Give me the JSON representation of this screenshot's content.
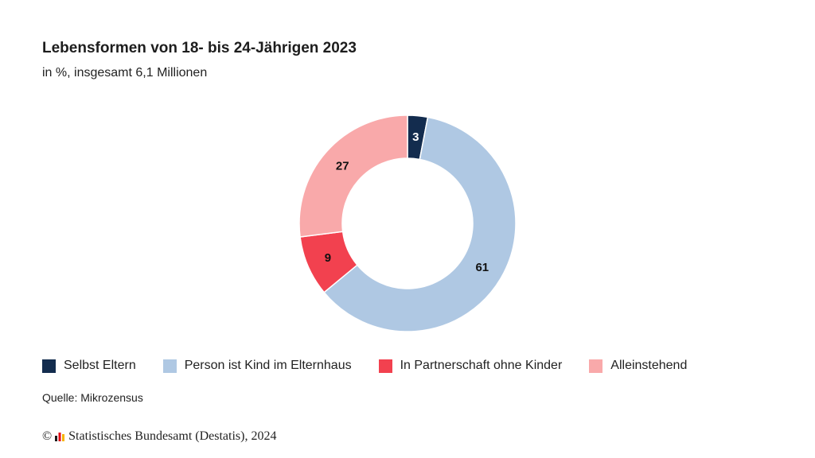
{
  "title": "Lebensformen von 18- bis 24-Jährigen 2023",
  "subtitle": "in %, insgesamt 6,1 Millionen",
  "source": "Quelle: Mikrozensus",
  "footer": {
    "copyright_symbol": "©",
    "text": "Statistisches Bundesamt (Destatis), 2024"
  },
  "chart_data": {
    "type": "pie",
    "variant": "donut",
    "categories": [
      "Selbst Eltern",
      "Person ist Kind im Elternhaus",
      "In Partnerschaft ohne Kinder",
      "Alleinstehend"
    ],
    "values": [
      3,
      61,
      9,
      27
    ],
    "colors": [
      "#132c4e",
      "#afc8e3",
      "#f2414f",
      "#f9a9aa"
    ],
    "label_colors": [
      "#ffffff",
      "#111111",
      "#111111",
      "#111111"
    ],
    "legend_position": "bottom"
  }
}
